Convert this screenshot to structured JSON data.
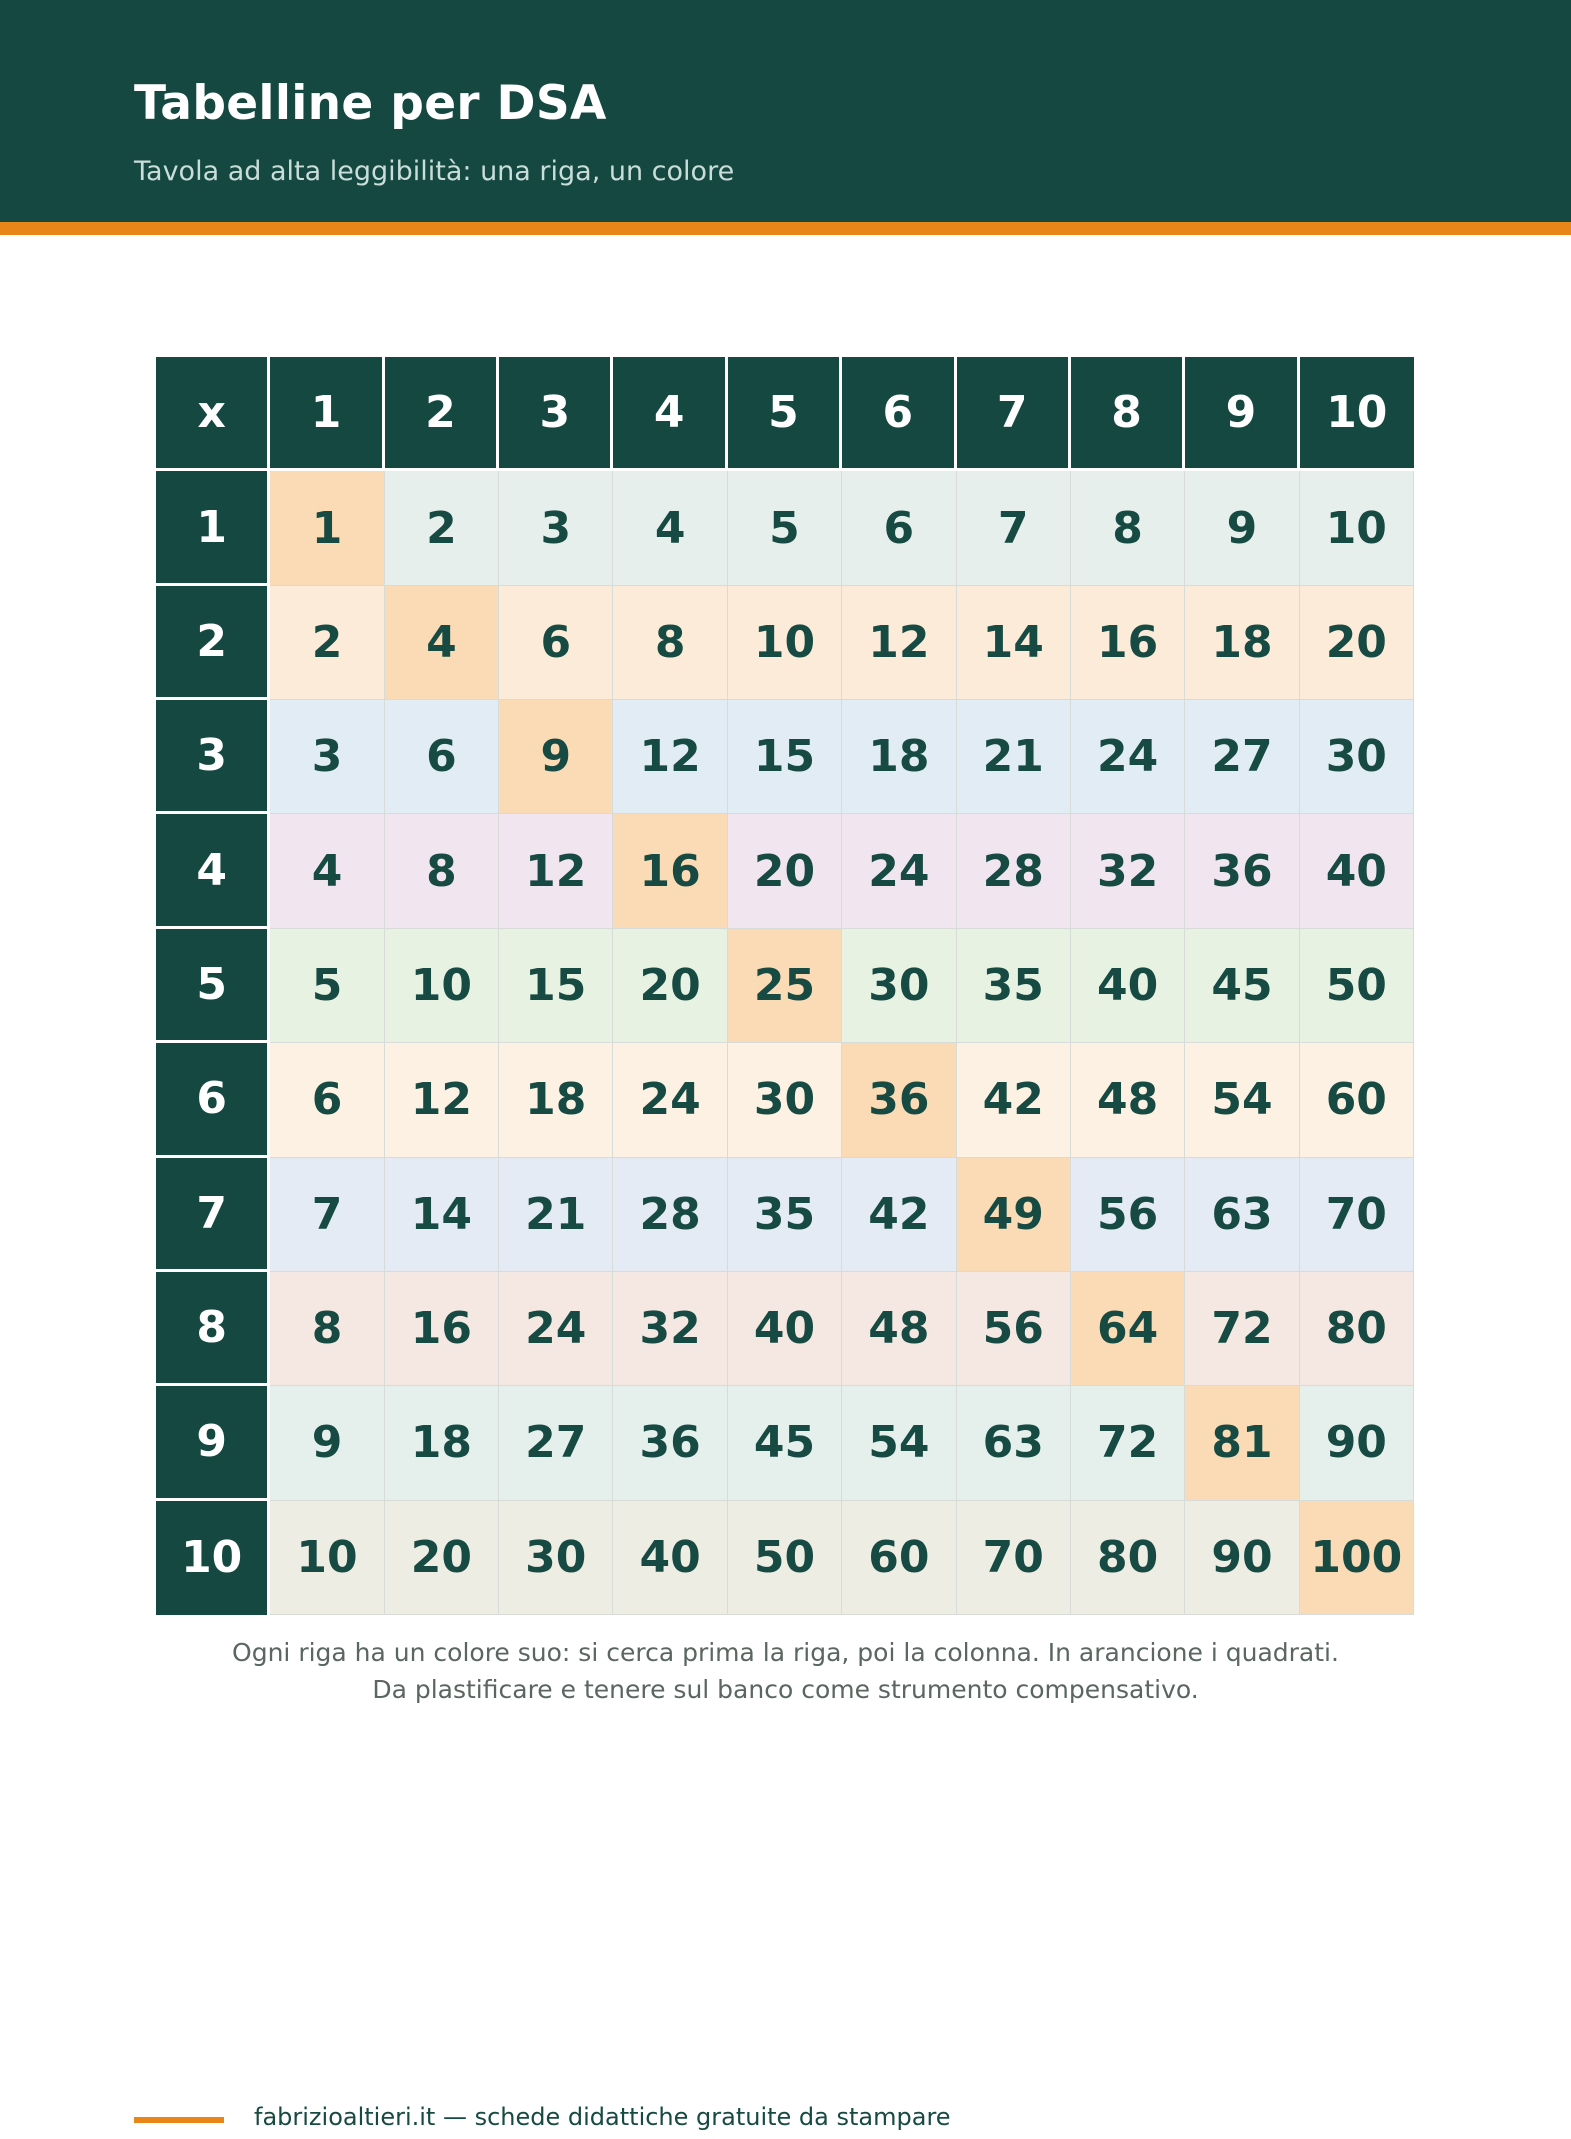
{
  "header": {
    "title": "Tabelline per DSA",
    "subtitle": "Tavola ad alta leggibilità: una riga, un colore"
  },
  "table": {
    "corner": "x",
    "columns": [
      "1",
      "2",
      "3",
      "4",
      "5",
      "6",
      "7",
      "8",
      "9",
      "10"
    ],
    "row_colors": [
      "#e6efec",
      "#fbebd8",
      "#e1ecf4",
      "#f1e6f0",
      "#e7f2e3",
      "#fdf1e3",
      "#e4ebf5",
      "#f5e8e2",
      "#e5f0ec",
      "#eeede4"
    ],
    "diagonal_color": "#fbdbb5",
    "rows": [
      {
        "label": "1",
        "values": [
          "1",
          "2",
          "3",
          "4",
          "5",
          "6",
          "7",
          "8",
          "9",
          "10"
        ]
      },
      {
        "label": "2",
        "values": [
          "2",
          "4",
          "6",
          "8",
          "10",
          "12",
          "14",
          "16",
          "18",
          "20"
        ]
      },
      {
        "label": "3",
        "values": [
          "3",
          "6",
          "9",
          "12",
          "15",
          "18",
          "21",
          "24",
          "27",
          "30"
        ]
      },
      {
        "label": "4",
        "values": [
          "4",
          "8",
          "12",
          "16",
          "20",
          "24",
          "28",
          "32",
          "36",
          "40"
        ]
      },
      {
        "label": "5",
        "values": [
          "5",
          "10",
          "15",
          "20",
          "25",
          "30",
          "35",
          "40",
          "45",
          "50"
        ]
      },
      {
        "label": "6",
        "values": [
          "6",
          "12",
          "18",
          "24",
          "30",
          "36",
          "42",
          "48",
          "54",
          "60"
        ]
      },
      {
        "label": "7",
        "values": [
          "7",
          "14",
          "21",
          "28",
          "35",
          "42",
          "49",
          "56",
          "63",
          "70"
        ]
      },
      {
        "label": "8",
        "values": [
          "8",
          "16",
          "24",
          "32",
          "40",
          "48",
          "56",
          "64",
          "72",
          "80"
        ]
      },
      {
        "label": "9",
        "values": [
          "9",
          "18",
          "27",
          "36",
          "45",
          "54",
          "63",
          "72",
          "81",
          "90"
        ]
      },
      {
        "label": "10",
        "values": [
          "10",
          "20",
          "30",
          "40",
          "50",
          "60",
          "70",
          "80",
          "90",
          "100"
        ]
      }
    ]
  },
  "notes": {
    "line1": "Ogni riga ha un colore suo: si cerca prima la riga, poi la colonna. In arancione i quadrati.",
    "line2": "Da plastificare e tenere sul banco come strumento compensativo."
  },
  "footer": {
    "text": "fabrizioaltieri.it — schede didattiche gratuite da stampare"
  }
}
